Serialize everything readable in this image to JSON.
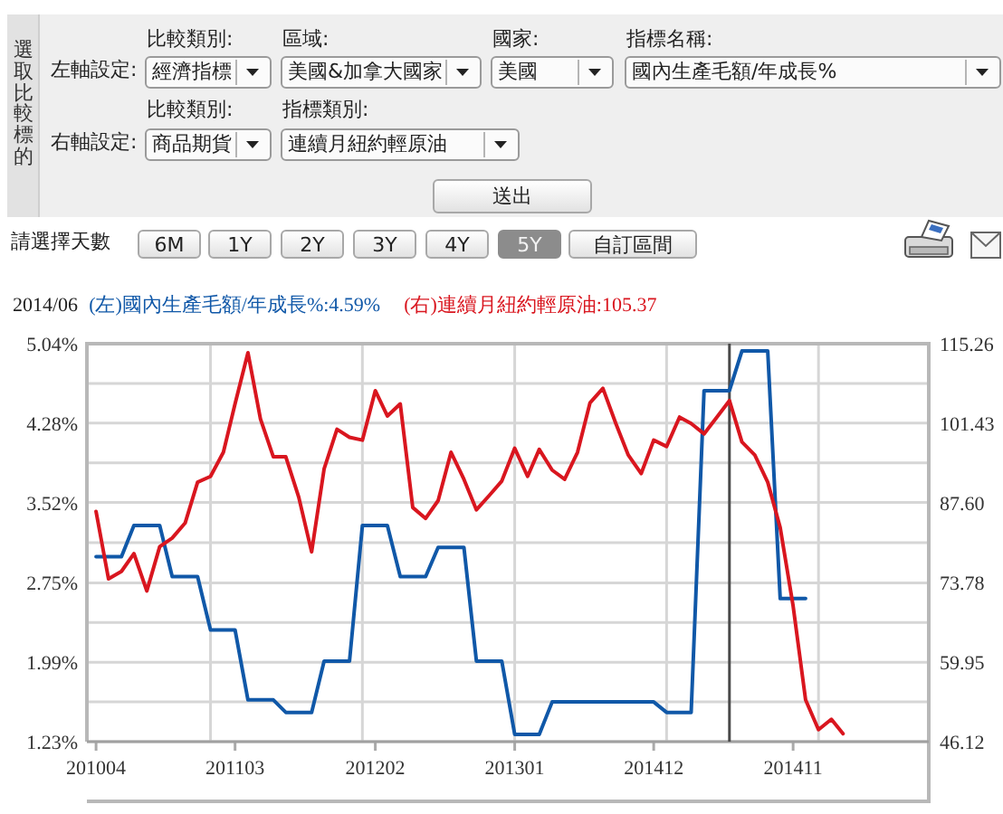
{
  "chart_data": [
    {
      "type": "other",
      "annotations": [
        "選取比較標的",
        "左軸設定:",
        "比較類別:",
        "經濟指標",
        "區域:",
        "美國&加拿大國家",
        "國家:",
        "美國",
        "指標名稱:",
        "國內生產毛額/年成長%",
        "右軸設定:",
        "比較類別:",
        "商品期貨",
        "指標類別:",
        "連續月紐約輕原油",
        "送出"
      ]
    },
    {
      "type": "line",
      "title": "2014/06",
      "annotations": [
        "請選擇天數",
        "6M",
        "1Y",
        "2Y",
        "3Y",
        "4Y",
        "5Y",
        "自訂區間"
      ],
      "x": [
        "2010-04",
        "2010-05",
        "2010-06",
        "2010-07",
        "2010-08",
        "2010-09",
        "2010-10",
        "2010-11",
        "2010-12",
        "2011-01",
        "2011-02",
        "2011-03",
        "2011-04",
        "2011-05",
        "2011-06",
        "2011-07",
        "2011-08",
        "2011-09",
        "2011-10",
        "2011-11",
        "2011-12",
        "2012-01",
        "2012-02",
        "2012-03",
        "2012-04",
        "2012-05",
        "2012-06",
        "2012-07",
        "2012-08",
        "2012-09",
        "2012-10",
        "2012-11",
        "2012-12",
        "2013-01",
        "2013-02",
        "2013-03",
        "2013-04",
        "2013-05",
        "2013-06",
        "2013-07",
        "2013-08",
        "2013-09",
        "2013-10",
        "2013-11",
        "2013-12",
        "2014-01",
        "2014-02",
        "2014-03",
        "2014-04",
        "2014-05",
        "2014-06",
        "2014-07",
        "2014-08",
        "2014-09",
        "2014-10",
        "2014-11",
        "2014-12",
        "2015-01",
        "2015-02",
        "2015-03"
      ],
      "series": [
        {
          "name": "(左)國內生產毛額/年成長%:4.59%",
          "color": "#1058a8",
          "values": [
            3.0,
            3.0,
            3.0,
            3.3,
            3.3,
            3.3,
            2.81,
            2.81,
            2.81,
            2.3,
            2.3,
            2.3,
            1.63,
            1.63,
            1.63,
            1.51,
            1.51,
            1.51,
            2.0,
            2.0,
            2.0,
            3.3,
            3.3,
            3.3,
            2.81,
            2.81,
            2.81,
            3.09,
            3.09,
            3.09,
            2.0,
            2.0,
            2.0,
            1.3,
            1.3,
            1.3,
            1.61,
            1.61,
            1.61,
            1.61,
            1.61,
            1.61,
            1.61,
            1.61,
            1.61,
            1.51,
            1.51,
            1.51,
            4.59,
            4.59,
            4.59,
            4.97,
            4.97,
            4.97,
            2.6,
            2.6,
            2.6,
            null,
            null,
            null
          ]
        },
        {
          "name": "(右)連續月紐約輕原油:105.37",
          "color": "#d9161f",
          "axis": "y2",
          "values": [
            86.1,
            74.4,
            75.7,
            78.8,
            72.3,
            80.0,
            81.5,
            84.1,
            91.2,
            92.2,
            96.4,
            104.8,
            113.7,
            102.2,
            95.6,
            95.6,
            88.6,
            79.1,
            93.5,
            100.4,
            99.0,
            98.5,
            107.1,
            102.7,
            104.8,
            86.8,
            84.9,
            88.0,
            96.4,
            91.7,
            86.4,
            88.9,
            91.4,
            97.1,
            92.2,
            96.9,
            93.3,
            91.7,
            96.4,
            105.0,
            107.5,
            101.4,
            95.9,
            92.7,
            98.5,
            97.4,
            102.5,
            101.4,
            99.6,
            102.4,
            105.37,
            98.2,
            95.9,
            91.2,
            83.3,
            69.7,
            53.4,
            48.2,
            50.0,
            47.5
          ]
        }
      ],
      "xlim": [
        "2010-03-10",
        "2015-09-23"
      ],
      "xticks": [
        {
          "value": "2010-04",
          "label": "201004"
        },
        {
          "value": "2011-01",
          "label": null
        },
        {
          "value": "2011-03",
          "label": "201103"
        },
        {
          "value": "2012-01",
          "label": null
        },
        {
          "value": "2012-02",
          "label": "201202"
        },
        {
          "value": "2013-01",
          "label": null
        },
        {
          "value": "2013-01",
          "label": "201301"
        },
        {
          "value": "2013-12",
          "label": "201412"
        },
        {
          "value": "2014-01",
          "label": null
        },
        {
          "value": "2014-11",
          "label": "201411"
        },
        {
          "value": "2015-01",
          "label": null
        }
      ],
      "ylim": [
        1.23,
        5.04
      ],
      "yticks": [
        {
          "value": 1.23,
          "label": "1.23%"
        },
        {
          "value": 1.61,
          "label": null
        },
        {
          "value": 1.99,
          "label": "1.99%"
        },
        {
          "value": 2.37,
          "label": null
        },
        {
          "value": 2.75,
          "label": "2.75%"
        },
        {
          "value": 3.135,
          "label": null
        },
        {
          "value": 3.52,
          "label": "3.52%"
        },
        {
          "value": 3.9,
          "label": null
        },
        {
          "value": 4.28,
          "label": "4.28%"
        },
        {
          "value": 4.66,
          "label": null
        },
        {
          "value": 5.04,
          "label": "5.04%"
        }
      ],
      "y2lim": [
        46.12,
        115.26
      ],
      "y2ticks": [
        46.12,
        59.95,
        73.78,
        {
          "value": 87.6,
          "label": "87.60"
        },
        101.43,
        115.26
      ],
      "grid": true,
      "legend": "top",
      "ref_lines": [
        {
          "axis": "x",
          "value": "2014-06",
          "color": "#4a4a4a"
        }
      ]
    }
  ]
}
